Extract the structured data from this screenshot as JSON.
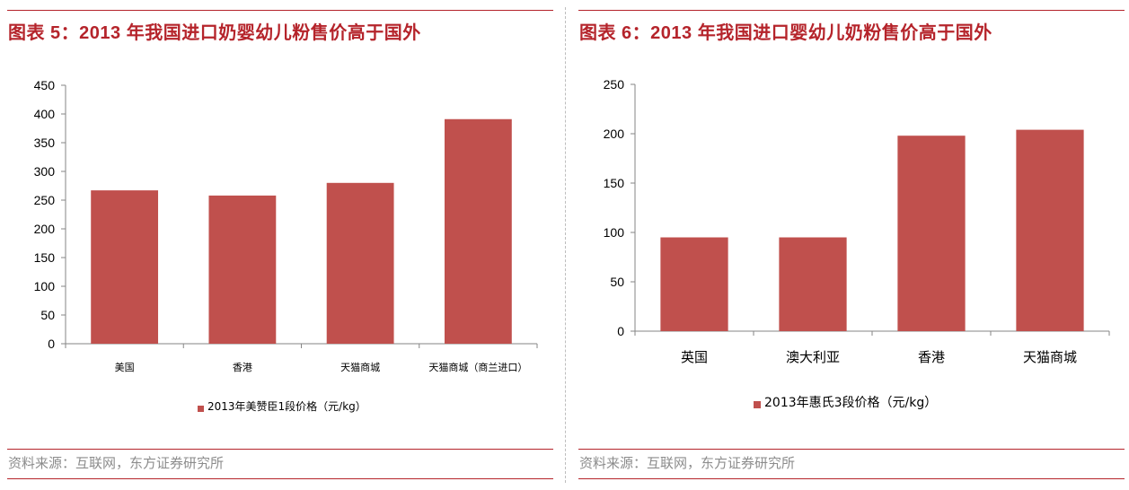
{
  "left": {
    "title": "图表 5：2013 年我国进口奶婴幼儿粉售价高于国外",
    "source": "资料来源：互联网，东方证券研究所",
    "chart_data": {
      "type": "bar",
      "categories": [
        "美国",
        "香港",
        "天猫商城",
        "天猫商城（商兰进口）"
      ],
      "series": [
        {
          "name": "2013年美赞臣1段价格（元/kg）",
          "values": [
            267,
            258,
            280,
            391
          ]
        }
      ],
      "ylim": [
        0,
        450
      ],
      "yticks": [
        0,
        50,
        100,
        150,
        200,
        250,
        300,
        350,
        400,
        450
      ],
      "title": "",
      "xlabel": "",
      "ylabel": "",
      "legend": "bottom",
      "grid": false,
      "color": "#c0504d"
    }
  },
  "right": {
    "title": "图表 6：2013 年我国进口婴幼儿奶粉售价高于国外",
    "source": "资料来源：互联网，东方证券研究所",
    "chart_data": {
      "type": "bar",
      "categories": [
        "英国",
        "澳大利亚",
        "香港",
        "天猫商城"
      ],
      "series": [
        {
          "name": "2013年惠氏3段价格（元/kg）",
          "values": [
            95,
            95,
            198,
            204
          ]
        }
      ],
      "ylim": [
        0,
        250
      ],
      "yticks": [
        0,
        50,
        100,
        150,
        200,
        250
      ],
      "title": "",
      "xlabel": "",
      "ylabel": "",
      "legend": "bottom",
      "grid": false,
      "color": "#c0504d"
    }
  }
}
